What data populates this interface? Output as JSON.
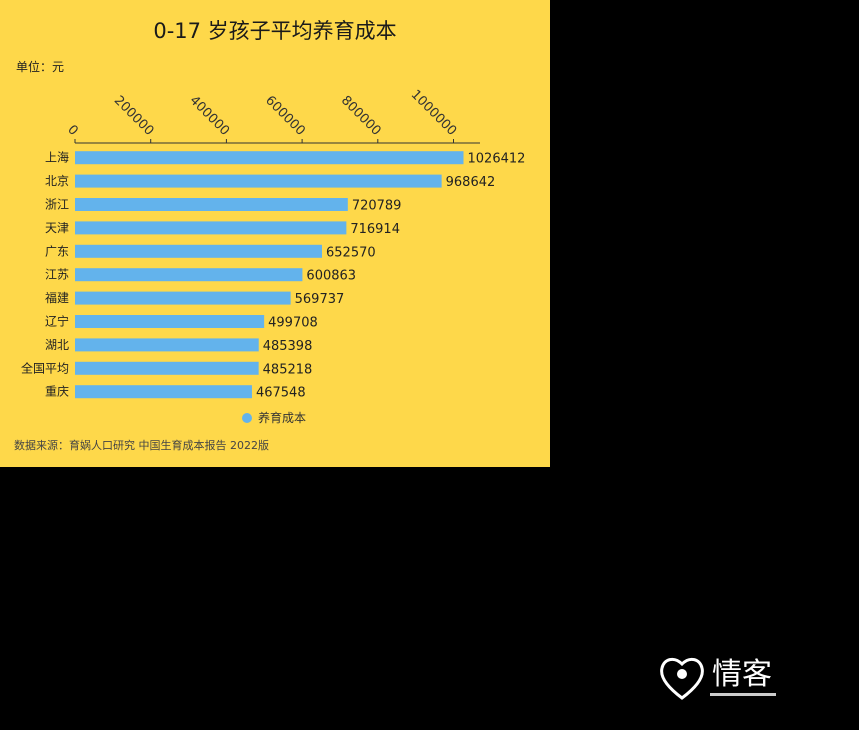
{
  "chart_data": {
    "type": "bar",
    "orientation": "horizontal",
    "title": "0-17 岁孩子平均养育成本",
    "unit_label": "单位：元",
    "categories": [
      "上海",
      "北京",
      "浙江",
      "天津",
      "广东",
      "江苏",
      "福建",
      "辽宁",
      "湖北",
      "全国平均",
      "重庆"
    ],
    "series": [
      {
        "name": "养育成本",
        "values": [
          1026412,
          968642,
          720789,
          716914,
          652570,
          600863,
          569737,
          499708,
          485398,
          485218,
          467548
        ]
      }
    ],
    "xticks": [
      0,
      200000,
      400000,
      600000,
      800000,
      1000000
    ],
    "xlim": [
      0,
      1070000
    ],
    "legend_position": "bottom",
    "grid": false,
    "source": "数据来源：育娲人口研究 中国生育成本报告 2022版"
  },
  "colors": {
    "background": "#FED84A",
    "bar": "#63B3EC",
    "page": "#000000"
  },
  "watermark": {
    "label": "情客",
    "icon": "heart-logo-icon"
  }
}
